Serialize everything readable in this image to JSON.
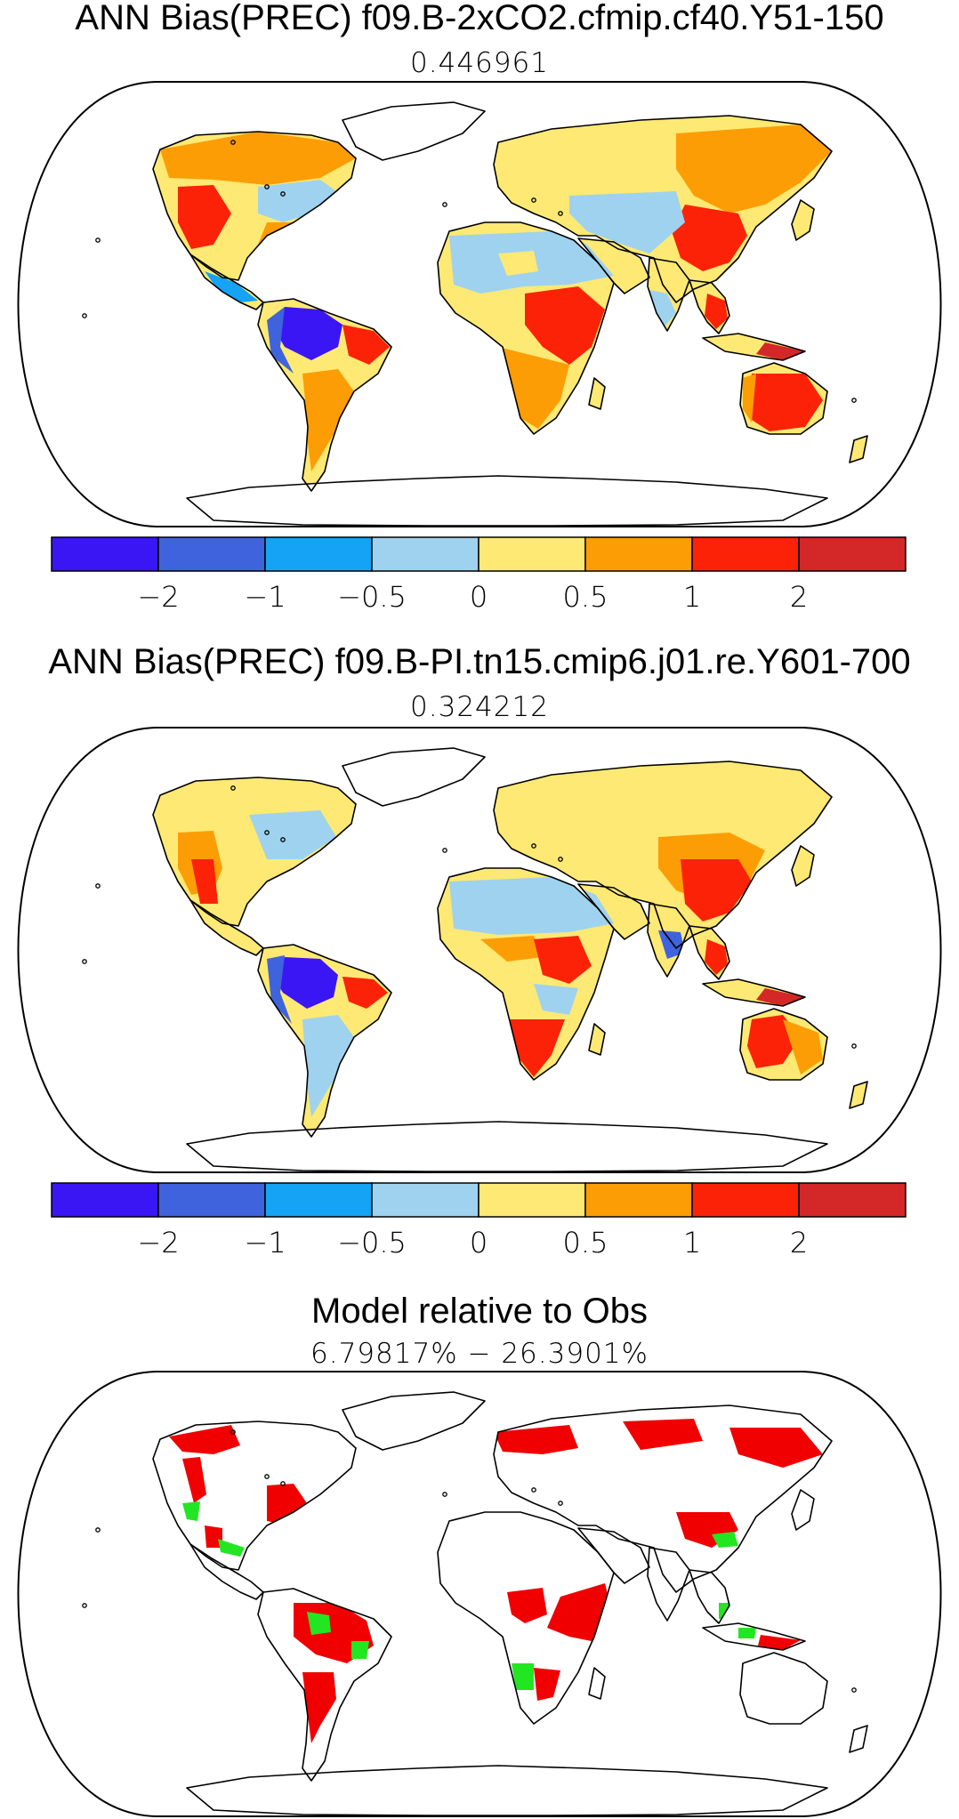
{
  "panels": [
    {
      "title": "ANN Bias(PREC) f09.B-2xCO2.cfmip.cf40.Y51-150",
      "subtitle": "0.446961"
    },
    {
      "title": "ANN Bias(PREC) f09.B-PI.tn15.cmip6.j01.re.Y601-700",
      "subtitle": "0.324212"
    },
    {
      "title": "Model relative to Obs",
      "subtitle": "6.79817% − 26.3901%"
    }
  ],
  "colorbar": {
    "colors": [
      "#3a16f5",
      "#3e63dd",
      "#14a3f5",
      "#9fd2ee",
      "#fde973",
      "#fd9d05",
      "#fc2207",
      "#d42727"
    ],
    "tick_labels": [
      "−2",
      "−1",
      "−0.5",
      "0",
      "0.5",
      "1",
      "2"
    ]
  },
  "significance_colors": {
    "worse": "#f00000",
    "better": "#22e622"
  },
  "coast_color": "#000000"
}
